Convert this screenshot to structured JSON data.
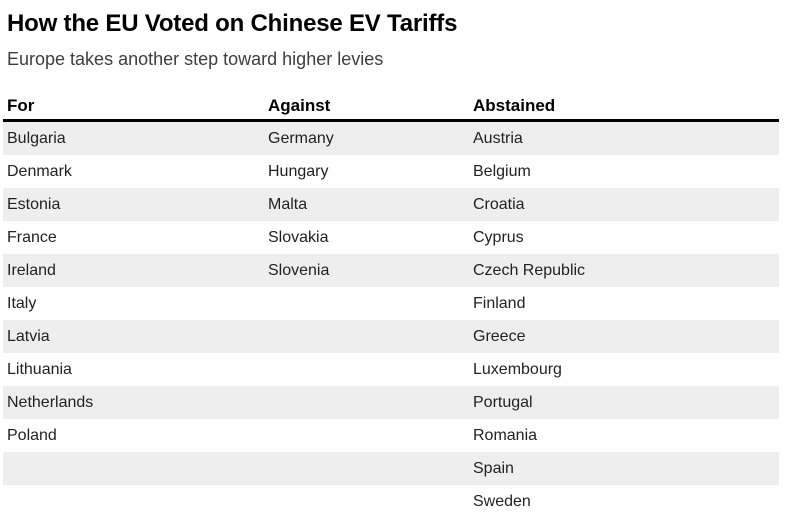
{
  "chart_data": {
    "type": "table",
    "title": "How the EU Voted on Chinese EV Tariffs",
    "subtitle": "Europe takes another step toward higher levies",
    "columns": [
      "For",
      "Against",
      "Abstained"
    ],
    "rows": [
      [
        "Bulgaria",
        "Germany",
        "Austria"
      ],
      [
        "Denmark",
        "Hungary",
        "Belgium"
      ],
      [
        "Estonia",
        "Malta",
        "Croatia"
      ],
      [
        "France",
        "Slovakia",
        "Cyprus"
      ],
      [
        "Ireland",
        "Slovenia",
        "Czech Republic"
      ],
      [
        "Italy",
        "",
        "Finland"
      ],
      [
        "Latvia",
        "",
        "Greece"
      ],
      [
        "Lithuania",
        "",
        "Luxembourg"
      ],
      [
        "Netherlands",
        "",
        "Portugal"
      ],
      [
        "Poland",
        "",
        "Romania"
      ],
      [
        "",
        "",
        "Spain"
      ],
      [
        "",
        "",
        "Sweden"
      ]
    ],
    "layout": {
      "striped": true,
      "first_row_shaded": true,
      "legend": "none",
      "grid": "off"
    }
  },
  "colors": {
    "background": "#ffffff",
    "stripe": "#eeeeee",
    "header_rule": "#000000",
    "title_text": "#000000",
    "subtitle_text": "#3d3d3d",
    "cell_text": "#222222"
  }
}
